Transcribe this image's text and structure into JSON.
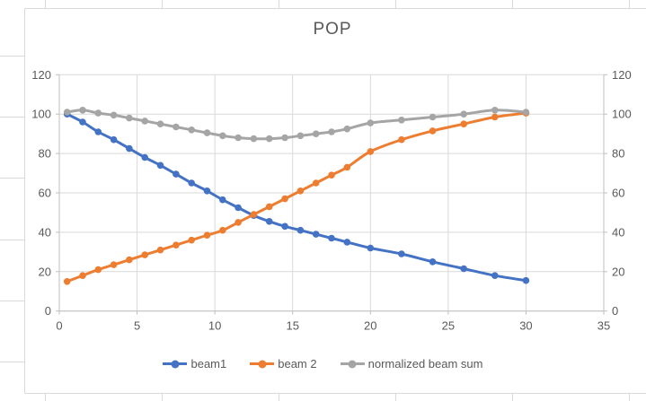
{
  "chart_data": {
    "type": "line",
    "title": "POP",
    "x": [
      0.5,
      1.5,
      2.5,
      3.5,
      4.5,
      5.5,
      6.5,
      7.5,
      8.5,
      9.5,
      10.5,
      11.5,
      12.5,
      13.5,
      14.5,
      15.5,
      16.5,
      17.5,
      18.5,
      20,
      22,
      24,
      26,
      28,
      30
    ],
    "series": [
      {
        "name": "beam1",
        "color": "#4472C4",
        "values": [
          100,
          96,
          91,
          87,
          82.5,
          78,
          74,
          69.5,
          65,
          61,
          56.5,
          52.5,
          48.5,
          45.5,
          43,
          41,
          39,
          37,
          35,
          32,
          29,
          25,
          21.5,
          18,
          15.5
        ]
      },
      {
        "name": "beam 2",
        "color": "#ED7D31",
        "values": [
          15,
          18,
          21,
          23.5,
          26,
          28.5,
          31,
          33.5,
          36,
          38.5,
          41,
          45,
          49,
          53,
          57,
          61,
          65,
          69,
          73,
          81,
          87,
          91.5,
          95,
          98.5,
          100.5
        ]
      },
      {
        "name": "normalized beam sum",
        "color": "#A5A5A5",
        "values": [
          101,
          102,
          100.5,
          99.5,
          98,
          96.5,
          95,
          93.5,
          92,
          90.5,
          89,
          88,
          87.5,
          87.5,
          88,
          89,
          90,
          91,
          92.5,
          95.5,
          97,
          98.5,
          100,
          102,
          101
        ]
      }
    ],
    "x_axis": {
      "min": 0,
      "max": 35,
      "ticks": [
        0,
        5,
        10,
        15,
        20,
        25,
        30,
        35
      ]
    },
    "y_axis_left": {
      "min": 0,
      "max": 120,
      "ticks": [
        0,
        20,
        40,
        60,
        80,
        100,
        120
      ]
    },
    "y_axis_right": {
      "min": 0,
      "max": 120,
      "ticks": [
        0,
        20,
        40,
        60,
        80,
        100,
        120
      ]
    },
    "grid": true,
    "line_smoothing": true,
    "legend_position": "bottom"
  },
  "colors": {
    "axis_line": "#BFBFBF",
    "gridline": "#D9D9D9",
    "text": "#595959"
  }
}
